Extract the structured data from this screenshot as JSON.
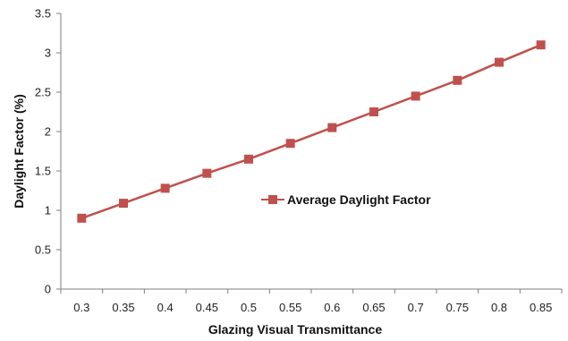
{
  "chart_data": {
    "type": "line",
    "title": "",
    "xlabel": "Glazing Visual Transmittance",
    "ylabel": "Daylight Factor (%)",
    "x": [
      0.3,
      0.35,
      0.4,
      0.45,
      0.5,
      0.55,
      0.6,
      0.65,
      0.7,
      0.75,
      0.8,
      0.85
    ],
    "x_tick_labels": [
      "0.3",
      "0.35",
      "0.4",
      "0.45",
      "0.5",
      "0.55",
      "0.6",
      "0.65",
      "0.7",
      "0.75",
      "0.8",
      "0.85"
    ],
    "ylim": [
      0,
      3.5
    ],
    "y_ticks": [
      0,
      0.5,
      1,
      1.5,
      2,
      2.5,
      3,
      3.5
    ],
    "y_tick_labels": [
      "0",
      "0.5",
      "1",
      "1.5",
      "2",
      "2.5",
      "3",
      "3.5"
    ],
    "grid": false,
    "legend_position": "center-right",
    "series": [
      {
        "name": "Average Daylight Factor",
        "color": "#c0504d",
        "marker": "square",
        "values": [
          0.9,
          1.09,
          1.28,
          1.47,
          1.65,
          1.85,
          2.05,
          2.25,
          2.45,
          2.65,
          2.88,
          3.1
        ]
      }
    ]
  }
}
